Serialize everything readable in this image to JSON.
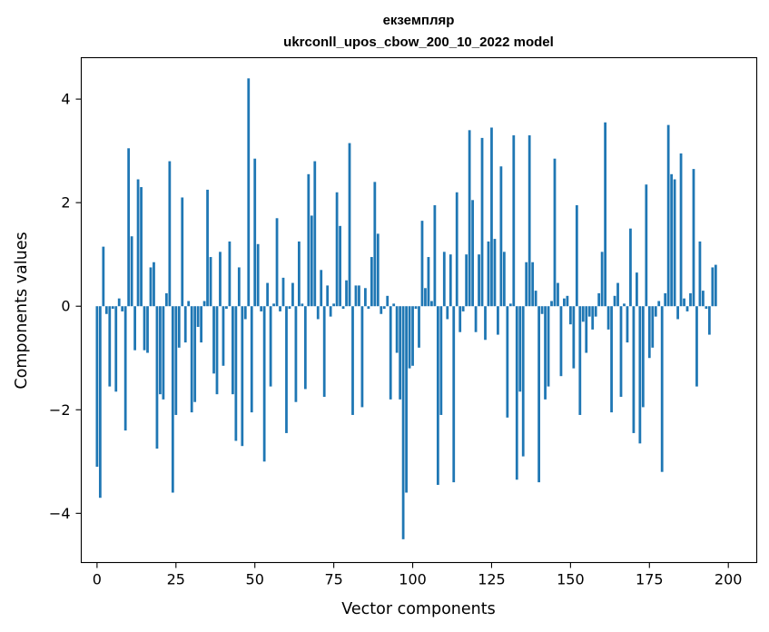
{
  "chart_data": {
    "type": "bar",
    "title_line1": "екземпляр",
    "title_line2": "ukrconll_upos_cbow_200_10_2022 model",
    "xlabel": "Vector components",
    "ylabel": "Components values",
    "xlim": [
      -5,
      209
    ],
    "ylim": [
      -4.95,
      4.8
    ],
    "xticks": [
      0,
      25,
      50,
      75,
      100,
      125,
      150,
      175,
      200
    ],
    "yticks": [
      -4,
      -2,
      0,
      2,
      4
    ],
    "ytick_labels": [
      "−4",
      "−2",
      "0",
      "2",
      "4"
    ],
    "grid": false,
    "color": "#1f77b4",
    "values": [
      -3.1,
      -3.7,
      1.15,
      -0.15,
      -1.55,
      -0.05,
      -1.65,
      0.15,
      -0.1,
      -2.4,
      3.05,
      1.35,
      -0.85,
      2.45,
      2.3,
      -0.85,
      -0.9,
      0.75,
      0.85,
      -2.75,
      -1.7,
      -1.8,
      0.25,
      2.8,
      -3.6,
      -2.1,
      -0.8,
      2.1,
      -0.7,
      0.1,
      -2.05,
      -1.85,
      -0.4,
      -0.7,
      0.1,
      2.25,
      0.95,
      -1.3,
      -1.7,
      1.05,
      -1.15,
      -0.05,
      1.25,
      -1.7,
      -2.6,
      0.75,
      -2.7,
      -0.25,
      4.4,
      -2.05,
      2.85,
      1.2,
      -0.1,
      -3.0,
      0.45,
      -1.55,
      0.05,
      1.7,
      -0.1,
      0.55,
      -2.45,
      -0.05,
      0.45,
      -1.85,
      1.25,
      0.05,
      -1.6,
      2.55,
      1.75,
      2.8,
      -0.25,
      0.7,
      -1.75,
      0.4,
      -0.2,
      0.05,
      2.2,
      1.55,
      -0.05,
      0.5,
      3.15,
      -2.1,
      0.4,
      0.4,
      -1.95,
      0.35,
      -0.05,
      0.95,
      2.4,
      1.4,
      -0.15,
      -0.05,
      0.2,
      -1.8,
      0.05,
      -0.9,
      -1.8,
      -4.5,
      -3.6,
      -1.2,
      -1.15,
      -0.05,
      -0.8,
      1.65,
      0.35,
      0.95,
      0.1,
      1.95,
      -3.45,
      -2.1,
      1.05,
      -0.25,
      1.0,
      -3.4,
      2.2,
      -0.5,
      -0.1,
      1.0,
      3.4,
      2.05,
      -0.5,
      1.0,
      3.25,
      -0.65,
      1.25,
      3.45,
      1.3,
      -0.55,
      2.7,
      1.05,
      -2.15,
      0.05,
      3.3,
      -3.35,
      -1.65,
      -2.9,
      0.85,
      3.3,
      0.85,
      0.3,
      -3.4,
      -0.15,
      -1.8,
      -1.55,
      0.1,
      2.85,
      0.45,
      -1.35,
      0.15,
      0.2,
      -0.35,
      -1.2,
      1.95,
      -2.1,
      -0.3,
      -0.9,
      -0.2,
      -0.45,
      -0.2,
      0.25,
      1.05,
      3.55,
      -0.45,
      -2.05,
      0.2,
      0.45,
      -1.75,
      0.05,
      -0.7,
      1.5,
      -2.45,
      0.65,
      -2.65,
      -1.95,
      2.35,
      -1.0,
      -0.8,
      -0.2,
      0.1,
      -3.2,
      0.25,
      3.5,
      2.55,
      2.45,
      -0.25,
      2.95,
      0.15,
      -0.1,
      0.25,
      2.65,
      -1.55,
      1.25,
      0.3,
      -0.05,
      -0.55,
      0.75,
      0.8
    ]
  }
}
